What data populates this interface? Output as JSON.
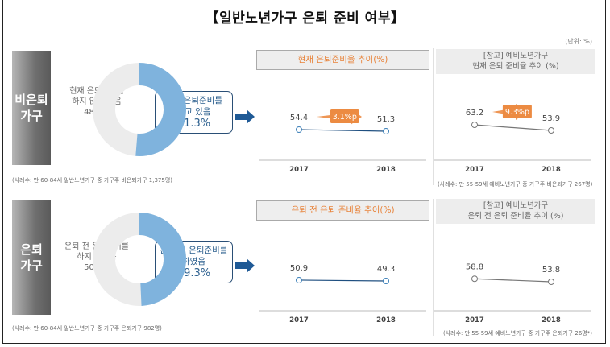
{
  "title": "【일반노년가구 은퇴 준비 여부】",
  "unit": "(단위: %)",
  "colors": {
    "blue": "#7fb3dd",
    "grey": "#ececec",
    "navy": "#1f5a96",
    "orange": "#ec8b42"
  },
  "sections": [
    {
      "label": "비은퇴\n가구",
      "donut_no_text": "현재 은퇴준비를\n하지 않고 있음",
      "donut_no_pct": "48.7%",
      "callout_text": "현재 은퇴준비를\n하고 있음",
      "callout_pct": "51.3%",
      "footnote": "(사례수: 만 60-84세 일반노년가구 중 가구주 비은퇴가구 1,375명)",
      "mid_title": "현재 은퇴준비율 추이(%)",
      "ref_title": "[참고] 예비노년가구\n현재 은퇴 준비율 추이 (%)",
      "ref_footnote": "(사례수: 만 55-59세 예비노년가구 중 가구주 비은퇴가구 267명)"
    },
    {
      "label": "은퇴\n가구",
      "donut_no_text": "은퇴 전 은퇴준비를\n하지 않았음",
      "donut_no_pct": "50.7%",
      "callout_text": "은퇴 전 은퇴준비를\n하였음",
      "callout_pct": "49.3%",
      "footnote": "(사례수: 만 60-84세 일반노년가구 중 가구주 은퇴가구 982명)",
      "mid_title": "은퇴 전 은퇴 준비율 추이(%)",
      "ref_title": "[참고] 예비노년가구\n은퇴 전 은퇴 준비율 추이 (%)",
      "ref_footnote": "(사례수: 만 55-59세 예비노년가구 중 가구주 은퇴가구 26명*)"
    }
  ],
  "chart_data": [
    {
      "type": "pie",
      "categories": [
        "현재 은퇴준비를 하고 있음",
        "현재 은퇴준비를 하지 않고 있음"
      ],
      "values": [
        51.3,
        48.7
      ]
    },
    {
      "type": "line",
      "title": "현재 은퇴준비율 추이(%)",
      "categories": [
        "2017",
        "2018"
      ],
      "values": [
        54.4,
        51.3
      ],
      "annotation": "3.1%p",
      "line_color": "#1f4f80"
    },
    {
      "type": "line",
      "title": "[참고] 예비노년가구 현재 은퇴 준비율 추이 (%)",
      "categories": [
        "2017",
        "2018"
      ],
      "values": [
        63.2,
        53.9
      ],
      "annotation": "9.3%p",
      "line_color": "#777777"
    },
    {
      "type": "pie",
      "categories": [
        "은퇴 전 은퇴준비를 하였음",
        "은퇴 전 은퇴준비를 하지 않았음"
      ],
      "values": [
        49.3,
        50.7
      ]
    },
    {
      "type": "line",
      "title": "은퇴 전 은퇴 준비율 추이(%)",
      "categories": [
        "2017",
        "2018"
      ],
      "values": [
        50.9,
        49.3
      ],
      "line_color": "#1f4f80"
    },
    {
      "type": "line",
      "title": "[참고] 예비노년가구 은퇴 전 은퇴 준비율 추이 (%)",
      "categories": [
        "2017",
        "2018"
      ],
      "values": [
        58.8,
        53.8
      ],
      "line_color": "#777777"
    }
  ]
}
